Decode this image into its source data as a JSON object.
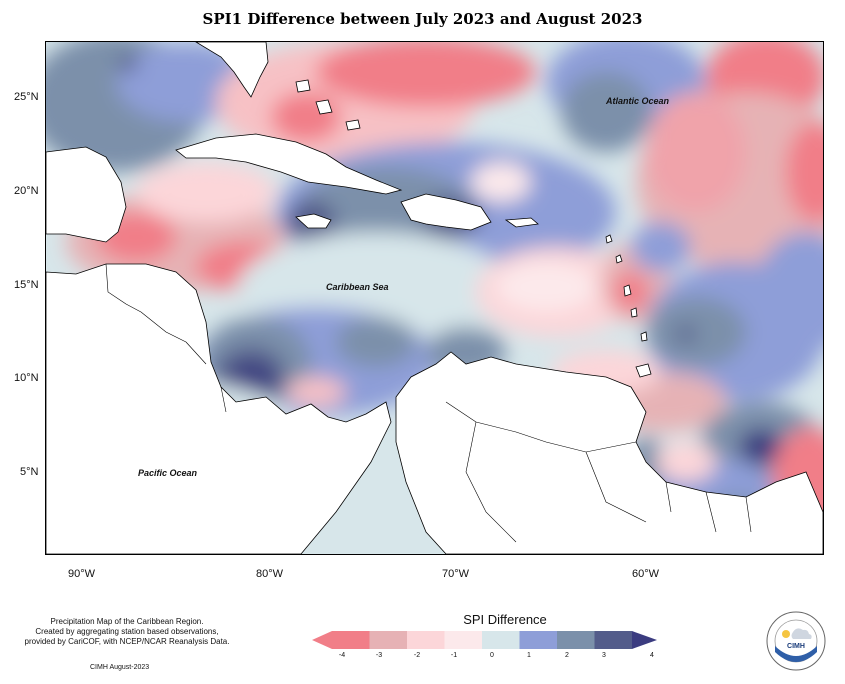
{
  "title": "SPI1 Difference between July 2023 and August 2023",
  "map": {
    "labels": {
      "atlantic": "Atlantic Ocean",
      "caribbean": "Caribbean Sea",
      "pacific": "Pacific Ocean"
    },
    "lat_ticks": [
      "25°N",
      "20°N",
      "15°N",
      "10°N",
      "5°N"
    ],
    "lon_ticks": [
      "90°W",
      "80°W",
      "70°W",
      "60°W"
    ],
    "extent": {
      "lon_min": -92,
      "lon_max": -51.5,
      "lat_min": 1.5,
      "lat_max": 28.2
    }
  },
  "legend": {
    "title": "SPI Difference",
    "ticks": [
      "-4",
      "-3",
      "-2",
      "-1",
      "0",
      "1",
      "2",
      "3",
      "4"
    ],
    "colors": [
      "#f17e88",
      "#e6b2b5",
      "#fcd6d9",
      "#fce9eb",
      "#d7e6ea",
      "#8e9ed8",
      "#7b90aa",
      "#535c8a",
      "#3b3c80"
    ]
  },
  "footer": {
    "lines": [
      "Precipitation Map of the Caribbean Region.",
      "Created by aggregating station based observations,",
      "provided by CariCOF, with NCEP/NCAR Reanalysis Data."
    ],
    "credit": "CIMH August-2023"
  },
  "logo": {
    "text": "CIMH"
  }
}
